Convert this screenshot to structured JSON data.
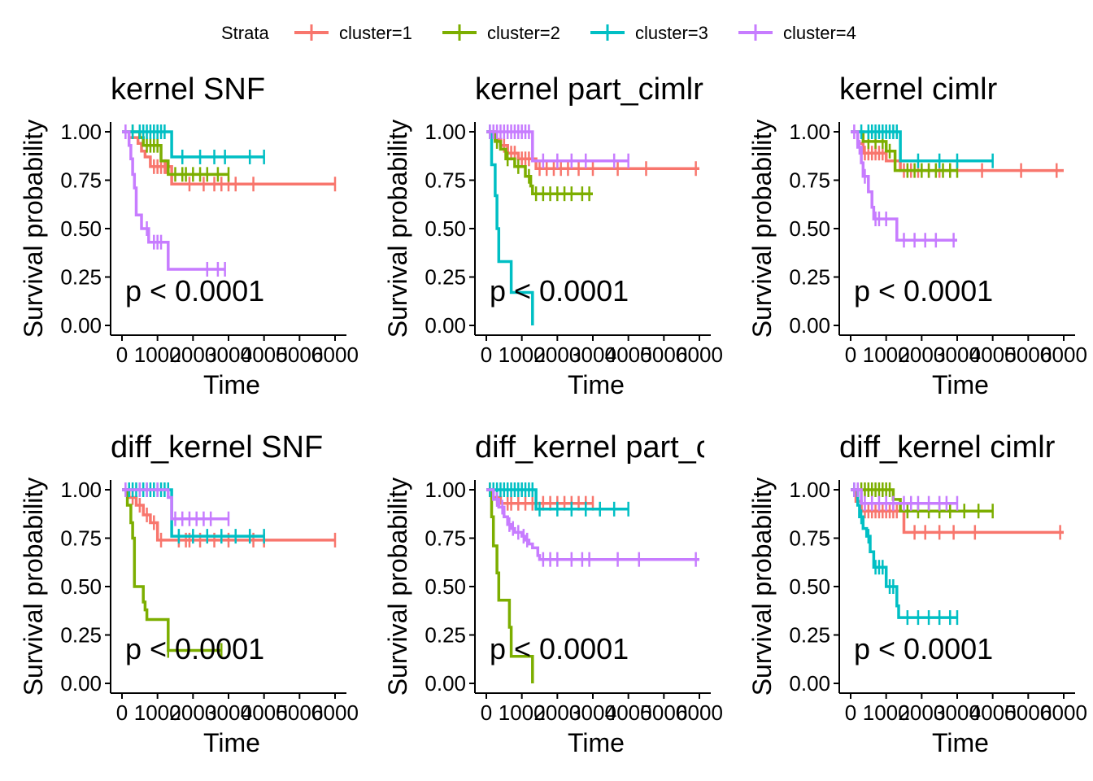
{
  "legend": {
    "title": "Strata",
    "entries": [
      {
        "label": "cluster=1",
        "color": "#F8766D"
      },
      {
        "label": "cluster=2",
        "color": "#7CAE00"
      },
      {
        "label": "cluster=3",
        "color": "#00BFC4"
      },
      {
        "label": "cluster=4",
        "color": "#C77CFF"
      }
    ]
  },
  "chart_data": [
    {
      "type": "line",
      "step": true,
      "title": "kernel SNF",
      "xlabel": "Time",
      "ylabel": "Survival probability",
      "annotation": "p < 0.0001",
      "xlim": [
        0,
        6000
      ],
      "ylim": [
        0,
        1
      ],
      "xticks": [
        "0",
        "1000",
        "2000",
        "3000",
        "4000",
        "5000",
        "6000"
      ],
      "yticks": [
        "0.00",
        "0.25",
        "0.50",
        "0.75",
        "1.00"
      ],
      "series": [
        {
          "name": "cluster=1",
          "color": "#F8766D",
          "x": [
            0,
            200,
            450,
            550,
            650,
            800,
            1400,
            6000
          ],
          "y": [
            1.0,
            0.97,
            0.94,
            0.9,
            0.87,
            0.82,
            0.73,
            0.73
          ],
          "censor_x": [
            900,
            1000,
            1100,
            1200,
            1250,
            1900,
            2300,
            2600,
            2800,
            3000,
            3200,
            3700,
            6000
          ]
        },
        {
          "name": "cluster=2",
          "color": "#7CAE00",
          "x": [
            0,
            500,
            600,
            1100,
            1300,
            3000
          ],
          "y": [
            1.0,
            0.97,
            0.93,
            0.85,
            0.78,
            0.78
          ],
          "censor_x": [
            300,
            700,
            800,
            900,
            1000,
            1500,
            1700,
            1800,
            2000,
            2200,
            2400,
            2700,
            3000
          ]
        },
        {
          "name": "cluster=3",
          "color": "#00BFC4",
          "x": [
            0,
            1400,
            4000
          ],
          "y": [
            1.0,
            0.87,
            0.87
          ],
          "censor_x": [
            300,
            500,
            600,
            700,
            800,
            900,
            1000,
            1100,
            1200,
            1700,
            2200,
            2600,
            2900,
            3600,
            4000
          ]
        },
        {
          "name": "cluster=4",
          "color": "#C77CFF",
          "x": [
            0,
            200,
            250,
            300,
            350,
            400,
            550,
            750,
            850,
            1300,
            2900
          ],
          "y": [
            1.0,
            0.93,
            0.86,
            0.78,
            0.71,
            0.57,
            0.5,
            0.43,
            0.43,
            0.29,
            0.29
          ],
          "censor_x": [
            100,
            700,
            900,
            1000,
            1100,
            2400,
            2700,
            2900
          ]
        }
      ]
    },
    {
      "type": "line",
      "step": true,
      "title": "kernel part_cimlr",
      "xlabel": "Time",
      "ylabel": "Survival probability",
      "annotation": "p < 0.0001",
      "xlim": [
        0,
        6000
      ],
      "ylim": [
        0,
        1
      ],
      "xticks": [
        "0",
        "1000",
        "2000",
        "3000",
        "4000",
        "5000",
        "6000"
      ],
      "yticks": [
        "0.00",
        "0.25",
        "0.50",
        "0.75",
        "1.00"
      ],
      "series": [
        {
          "name": "cluster=1",
          "color": "#F8766D",
          "x": [
            0,
            250,
            400,
            600,
            900,
            1400,
            6000
          ],
          "y": [
            1.0,
            0.96,
            0.93,
            0.89,
            0.86,
            0.81,
            0.81
          ],
          "censor_x": [
            500,
            700,
            800,
            1000,
            1100,
            1200,
            1500,
            1700,
            1900,
            2100,
            2300,
            2600,
            3000,
            3700,
            4500,
            5900
          ]
        },
        {
          "name": "cluster=2",
          "color": "#7CAE00",
          "x": [
            0,
            250,
            400,
            550,
            800,
            1100,
            1250,
            1300,
            3000
          ],
          "y": [
            1.0,
            0.95,
            0.91,
            0.86,
            0.82,
            0.77,
            0.72,
            0.68,
            0.68
          ],
          "censor_x": [
            300,
            600,
            900,
            1200,
            1400,
            1600,
            1800,
            2000,
            2200,
            2400,
            2700,
            2900
          ]
        },
        {
          "name": "cluster=3",
          "color": "#00BFC4",
          "x": [
            0,
            150,
            200,
            250,
            300,
            350,
            700,
            1300,
            1300
          ],
          "y": [
            1.0,
            0.83,
            0.83,
            0.67,
            0.5,
            0.33,
            0.17,
            0.17,
            0.0
          ],
          "censor_x": [
            100
          ]
        },
        {
          "name": "cluster=4",
          "color": "#C77CFF",
          "x": [
            0,
            1300,
            4000
          ],
          "y": [
            1.0,
            0.85,
            0.85
          ],
          "censor_x": [
            100,
            200,
            300,
            400,
            500,
            600,
            700,
            800,
            900,
            1000,
            1100,
            1200,
            1600,
            2000,
            2400,
            2800,
            3600,
            4000
          ]
        }
      ]
    },
    {
      "type": "line",
      "step": true,
      "title": "kernel cimlr",
      "xlabel": "Time",
      "ylabel": "Survival probability",
      "annotation": "p < 0.0001",
      "xlim": [
        0,
        6000
      ],
      "ylim": [
        0,
        1
      ],
      "xticks": [
        "0",
        "1000",
        "2000",
        "3000",
        "4000",
        "5000",
        "6000"
      ],
      "yticks": [
        "0.00",
        "0.25",
        "0.50",
        "0.75",
        "1.00"
      ],
      "series": [
        {
          "name": "cluster=1",
          "color": "#F8766D",
          "x": [
            0,
            200,
            350,
            1000,
            1400,
            6000
          ],
          "y": [
            1.0,
            0.94,
            0.89,
            0.85,
            0.8,
            0.8
          ],
          "censor_x": [
            400,
            500,
            600,
            700,
            800,
            900,
            1500,
            1700,
            1900,
            2200,
            2500,
            2800,
            3700,
            4800,
            5800
          ]
        },
        {
          "name": "cluster=2",
          "color": "#7CAE00",
          "x": [
            0,
            350,
            1000,
            1250,
            3000
          ],
          "y": [
            1.0,
            0.95,
            0.9,
            0.8,
            0.8
          ],
          "censor_x": [
            500,
            700,
            900,
            1100,
            1600,
            1800,
            2000,
            2200,
            2400,
            2600,
            2800,
            3000
          ]
        },
        {
          "name": "cluster=3",
          "color": "#00BFC4",
          "x": [
            0,
            1400,
            4000
          ],
          "y": [
            1.0,
            0.85,
            0.85
          ],
          "censor_x": [
            300,
            500,
            600,
            700,
            800,
            900,
            1000,
            1100,
            1200,
            1300,
            1900,
            2500,
            3000,
            4000
          ]
        },
        {
          "name": "cluster=4",
          "color": "#C77CFF",
          "x": [
            0,
            200,
            300,
            350,
            500,
            600,
            650,
            1300,
            3000
          ],
          "y": [
            1.0,
            0.92,
            0.84,
            0.77,
            0.69,
            0.61,
            0.55,
            0.44,
            0.44
          ],
          "censor_x": [
            100,
            250,
            400,
            700,
            800,
            1000,
            1500,
            1800,
            2100,
            2400,
            2900
          ]
        }
      ]
    },
    {
      "type": "line",
      "step": true,
      "title": "diff_kernel SNF",
      "xlabel": "Time",
      "ylabel": "Survival probability",
      "annotation": "p < 0.0001",
      "xlim": [
        0,
        6000
      ],
      "ylim": [
        0,
        1
      ],
      "xticks": [
        "0",
        "1000",
        "2000",
        "3000",
        "4000",
        "5000",
        "6000"
      ],
      "yticks": [
        "0.00",
        "0.25",
        "0.50",
        "0.75",
        "1.00"
      ],
      "series": [
        {
          "name": "cluster=1",
          "color": "#F8766D",
          "x": [
            0,
            200,
            400,
            600,
            800,
            1000,
            6000
          ],
          "y": [
            1.0,
            0.96,
            0.92,
            0.87,
            0.83,
            0.74,
            0.74
          ],
          "censor_x": [
            300,
            500,
            700,
            900,
            1100,
            1600,
            1800,
            1900,
            2200,
            2600,
            3000,
            3700,
            4000,
            6000
          ]
        },
        {
          "name": "cluster=2",
          "color": "#7CAE00",
          "x": [
            0,
            150,
            250,
            300,
            350,
            600,
            650,
            700,
            1300,
            1300,
            2800
          ],
          "y": [
            1.0,
            0.92,
            0.83,
            0.75,
            0.5,
            0.42,
            0.38,
            0.33,
            0.33,
            0.17,
            0.17
          ],
          "censor_x": [
            1300,
            2800
          ]
        },
        {
          "name": "cluster=3",
          "color": "#00BFC4",
          "x": [
            0,
            1400,
            4000
          ],
          "y": [
            1.0,
            0.76,
            0.76
          ],
          "censor_x": [
            200,
            300,
            400,
            500,
            600,
            700,
            800,
            900,
            1000,
            1100,
            1200,
            1300,
            1600,
            2000,
            2400,
            2800,
            3200,
            3600,
            4000
          ]
        },
        {
          "name": "cluster=4",
          "color": "#C77CFF",
          "x": [
            0,
            1300,
            1400,
            3000
          ],
          "y": [
            1.0,
            0.96,
            0.85,
            0.85
          ],
          "censor_x": [
            100,
            500,
            700,
            1000,
            1500,
            1700,
            1900,
            2100,
            2300,
            2500,
            3000
          ]
        }
      ]
    },
    {
      "type": "line",
      "step": true,
      "title": "diff_kernel part_cimlr",
      "xlabel": "Time",
      "ylabel": "Survival probability",
      "annotation": "p < 0.0001",
      "xlim": [
        0,
        6000
      ],
      "ylim": [
        0,
        1
      ],
      "xticks": [
        "0",
        "1000",
        "2000",
        "3000",
        "4000",
        "5000",
        "6000"
      ],
      "yticks": [
        "0.00",
        "0.25",
        "0.50",
        "0.75",
        "1.00"
      ],
      "series": [
        {
          "name": "cluster=1",
          "color": "#F8766D",
          "x": [
            0,
            150,
            400,
            3000
          ],
          "y": [
            1.0,
            0.96,
            0.93,
            0.93
          ],
          "censor_x": [
            300,
            600,
            700,
            900,
            1100,
            1300,
            1400,
            1600,
            1800,
            2000,
            2200,
            2400,
            2600,
            2800,
            3000
          ]
        },
        {
          "name": "cluster=2",
          "color": "#7CAE00",
          "x": [
            0,
            150,
            200,
            300,
            350,
            650,
            700,
            1300,
            1300
          ],
          "y": [
            1.0,
            0.86,
            0.71,
            0.57,
            0.43,
            0.29,
            0.14,
            0.14,
            0.0
          ],
          "censor_x": [
            100
          ]
        },
        {
          "name": "cluster=3",
          "color": "#00BFC4",
          "x": [
            0,
            1400,
            4000
          ],
          "y": [
            1.0,
            0.9,
            0.9
          ],
          "censor_x": [
            100,
            200,
            300,
            400,
            500,
            600,
            700,
            800,
            900,
            1000,
            1100,
            1200,
            1300,
            1500,
            2000,
            2400,
            2800,
            3200,
            3600,
            4000
          ]
        },
        {
          "name": "cluster=4",
          "color": "#C77CFF",
          "x": [
            0,
            200,
            350,
            500,
            600,
            700,
            800,
            1000,
            1100,
            1200,
            1300,
            1450,
            1500,
            6000
          ],
          "y": [
            1.0,
            0.95,
            0.91,
            0.86,
            0.82,
            0.8,
            0.78,
            0.76,
            0.74,
            0.72,
            0.7,
            0.66,
            0.64,
            0.64
          ],
          "censor_x": [
            300,
            450,
            650,
            750,
            900,
            1050,
            1150,
            1600,
            1800,
            2000,
            2400,
            2700,
            2900,
            3700,
            4300,
            5900
          ]
        }
      ]
    },
    {
      "type": "line",
      "step": true,
      "title": "diff_kernel cimlr",
      "xlabel": "Time",
      "ylabel": "Survival probability",
      "annotation": "p < 0.0001",
      "xlim": [
        0,
        6000
      ],
      "ylim": [
        0,
        1
      ],
      "xticks": [
        "0",
        "1000",
        "2000",
        "3000",
        "4000",
        "5000",
        "6000"
      ],
      "yticks": [
        "0.00",
        "0.25",
        "0.50",
        "0.75",
        "1.00"
      ],
      "series": [
        {
          "name": "cluster=1",
          "color": "#F8766D",
          "x": [
            0,
            150,
            300,
            1500,
            6000
          ],
          "y": [
            1.0,
            0.94,
            0.89,
            0.78,
            0.78
          ],
          "censor_x": [
            400,
            500,
            600,
            700,
            800,
            900,
            1000,
            1100,
            1200,
            1300,
            1800,
            2100,
            2500,
            2900,
            3500,
            5900
          ]
        },
        {
          "name": "cluster=2",
          "color": "#7CAE00",
          "x": [
            0,
            1200,
            1400,
            4000
          ],
          "y": [
            1.0,
            0.95,
            0.89,
            0.89
          ],
          "censor_x": [
            200,
            300,
            400,
            500,
            600,
            700,
            800,
            900,
            1000,
            1100,
            1600,
            1900,
            2200,
            2500,
            2800,
            3200,
            3600,
            4000
          ]
        },
        {
          "name": "cluster=3",
          "color": "#00BFC4",
          "x": [
            0,
            200,
            250,
            350,
            450,
            550,
            650,
            850,
            1000,
            1300,
            1350,
            3000
          ],
          "y": [
            1.0,
            0.92,
            0.86,
            0.8,
            0.76,
            0.68,
            0.6,
            0.6,
            0.5,
            0.4,
            0.34,
            0.34
          ],
          "censor_x": [
            100,
            300,
            500,
            700,
            800,
            900,
            1100,
            1200,
            1600,
            1900,
            2200,
            2500,
            2800,
            3000
          ]
        },
        {
          "name": "cluster=4",
          "color": "#C77CFF",
          "x": [
            0,
            300,
            3000
          ],
          "y": [
            1.0,
            0.93,
            0.93
          ],
          "censor_x": [
            100,
            200,
            400,
            600,
            800,
            1000,
            1200,
            1500,
            1700,
            1900,
            2200,
            2500,
            2700,
            3000
          ]
        }
      ]
    }
  ]
}
